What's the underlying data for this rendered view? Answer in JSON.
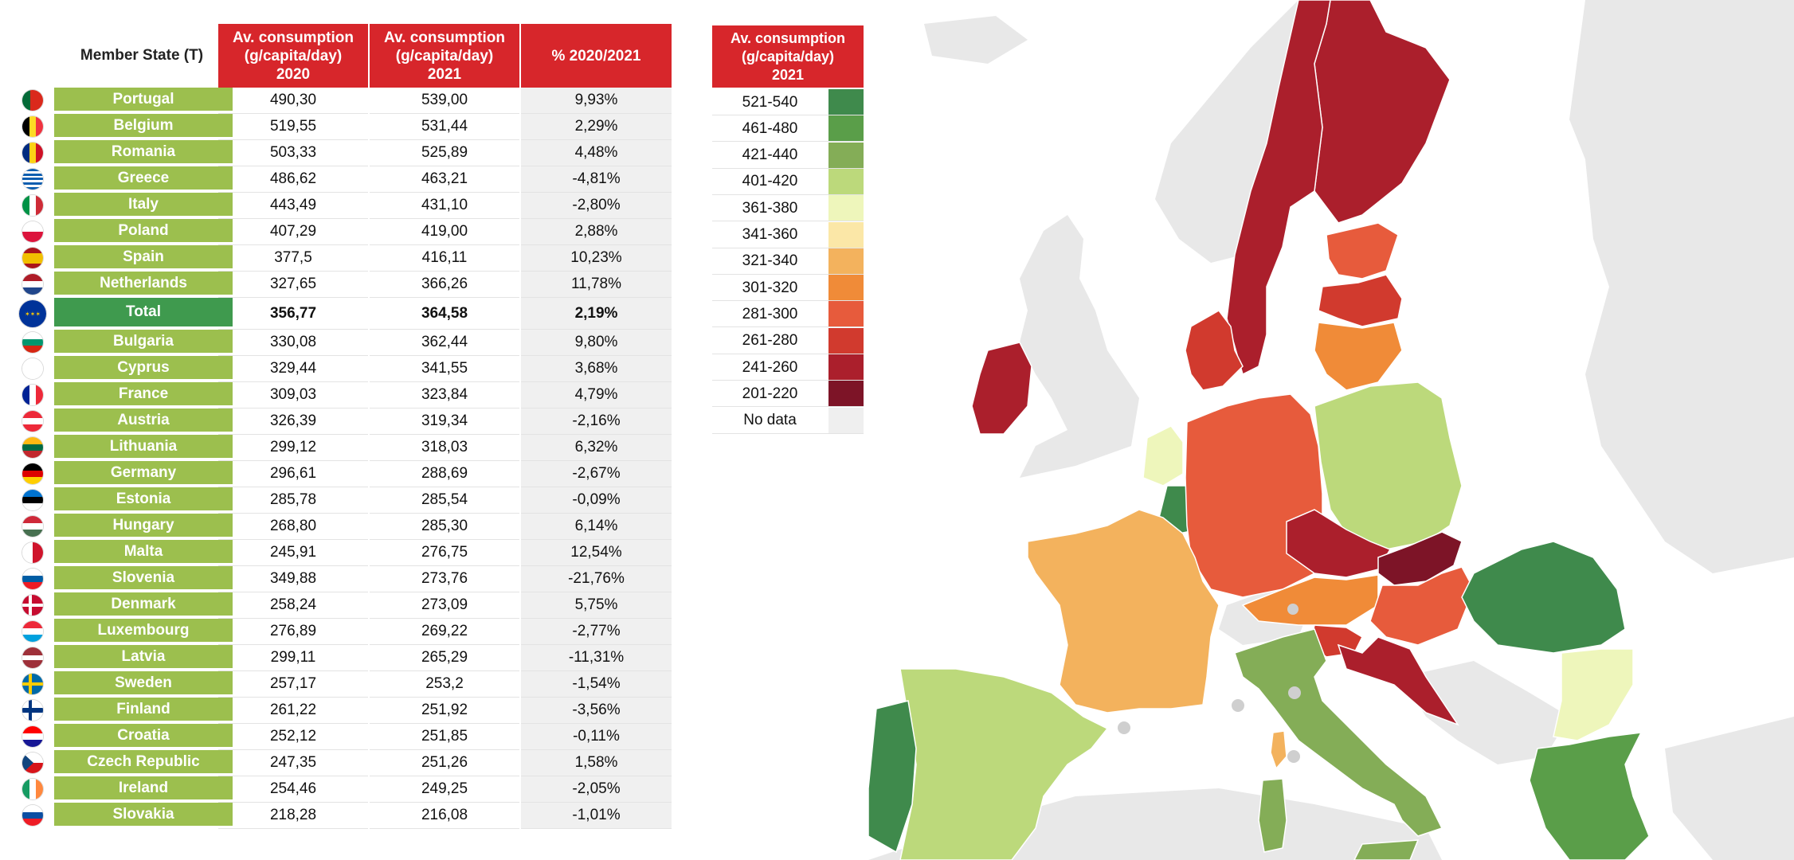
{
  "table": {
    "headers": {
      "member_state": "Member State (T)",
      "col2020": "Av. consumption\n(g/capita/day)\n2020",
      "col2021": "Av. consumption\n(g/capita/day)\n2021",
      "pct": "% 2020/2021"
    },
    "rows": [
      {
        "country": "Portugal",
        "v2020": "490,30",
        "v2021": "539,00",
        "pct": "9,93%",
        "flag": "portugal-flag-icon"
      },
      {
        "country": "Belgium",
        "v2020": "519,55",
        "v2021": "531,44",
        "pct": "2,29%",
        "flag": "belgium-flag-icon"
      },
      {
        "country": "Romania",
        "v2020": "503,33",
        "v2021": "525,89",
        "pct": "4,48%",
        "flag": "romania-flag-icon"
      },
      {
        "country": "Greece",
        "v2020": "486,62",
        "v2021": "463,21",
        "pct": "-4,81%",
        "flag": "greece-flag-icon"
      },
      {
        "country": "Italy",
        "v2020": "443,49",
        "v2021": "431,10",
        "pct": "-2,80%",
        "flag": "italy-flag-icon"
      },
      {
        "country": "Poland",
        "v2020": "407,29",
        "v2021": "419,00",
        "pct": "2,88%",
        "flag": "poland-flag-icon"
      },
      {
        "country": "Spain",
        "v2020": "377,5",
        "v2021": "416,11",
        "pct": "10,23%",
        "flag": "spain-flag-icon"
      },
      {
        "country": "Netherlands",
        "v2020": "327,65",
        "v2021": "366,26",
        "pct": "11,78%",
        "flag": "netherlands-flag-icon"
      },
      {
        "country": "Total",
        "v2020": "356,77",
        "v2021": "364,58",
        "pct": "2,19%",
        "flag": "eu-flag-icon",
        "total": true
      },
      {
        "country": "Bulgaria",
        "v2020": "330,08",
        "v2021": "362,44",
        "pct": "9,80%",
        "flag": "bulgaria-flag-icon"
      },
      {
        "country": "Cyprus",
        "v2020": "329,44",
        "v2021": "341,55",
        "pct": "3,68%",
        "flag": "cyprus-flag-icon"
      },
      {
        "country": "France",
        "v2020": "309,03",
        "v2021": "323,84",
        "pct": "4,79%",
        "flag": "france-flag-icon"
      },
      {
        "country": "Austria",
        "v2020": "326,39",
        "v2021": "319,34",
        "pct": "-2,16%",
        "flag": "austria-flag-icon"
      },
      {
        "country": "Lithuania",
        "v2020": "299,12",
        "v2021": "318,03",
        "pct": "6,32%",
        "flag": "lithuania-flag-icon"
      },
      {
        "country": "Germany",
        "v2020": "296,61",
        "v2021": "288,69",
        "pct": "-2,67%",
        "flag": "germany-flag-icon"
      },
      {
        "country": "Estonia",
        "v2020": "285,78",
        "v2021": "285,54",
        "pct": "-0,09%",
        "flag": "estonia-flag-icon"
      },
      {
        "country": "Hungary",
        "v2020": "268,80",
        "v2021": "285,30",
        "pct": "6,14%",
        "flag": "hungary-flag-icon"
      },
      {
        "country": "Malta",
        "v2020": "245,91",
        "v2021": "276,75",
        "pct": "12,54%",
        "flag": "malta-flag-icon"
      },
      {
        "country": "Slovenia",
        "v2020": "349,88",
        "v2021": "273,76",
        "pct": "-21,76%",
        "flag": "slovenia-flag-icon"
      },
      {
        "country": "Denmark",
        "v2020": "258,24",
        "v2021": "273,09",
        "pct": "5,75%",
        "flag": "denmark-flag-icon"
      },
      {
        "country": "Luxembourg",
        "v2020": "276,89",
        "v2021": "269,22",
        "pct": "-2,77%",
        "flag": "luxembourg-flag-icon"
      },
      {
        "country": "Latvia",
        "v2020": "299,11",
        "v2021": "265,29",
        "pct": "-11,31%",
        "flag": "latvia-flag-icon"
      },
      {
        "country": "Sweden",
        "v2020": "257,17",
        "v2021": "253,2",
        "pct": "-1,54%",
        "flag": "sweden-flag-icon"
      },
      {
        "country": "Finland",
        "v2020": "261,22",
        "v2021": "251,92",
        "pct": "-3,56%",
        "flag": "finland-flag-icon"
      },
      {
        "country": "Croatia",
        "v2020": "252,12",
        "v2021": "251,85",
        "pct": "-0,11%",
        "flag": "croatia-flag-icon"
      },
      {
        "country": "Czech Republic",
        "v2020": "247,35",
        "v2021": "251,26",
        "pct": "1,58%",
        "flag": "czech-flag-icon"
      },
      {
        "country": "Ireland",
        "v2020": "254,46",
        "v2021": "249,25",
        "pct": "-2,05%",
        "flag": "ireland-flag-icon"
      },
      {
        "country": "Slovakia",
        "v2020": "218,28",
        "v2021": "216,08",
        "pct": "-1,01%",
        "flag": "slovakia-flag-icon"
      }
    ]
  },
  "legend": {
    "header": "Av. consumption\n(g/capita/day)\n2021",
    "items": [
      {
        "label": "521-540",
        "color": "#3f8a4c"
      },
      {
        "label": "461-480",
        "color": "#5a9e49"
      },
      {
        "label": "421-440",
        "color": "#84ad57"
      },
      {
        "label": "401-420",
        "color": "#bcd97b"
      },
      {
        "label": "361-380",
        "color": "#eef6bb"
      },
      {
        "label": "341-360",
        "color": "#fbe7a7"
      },
      {
        "label": "321-340",
        "color": "#f3b25d"
      },
      {
        "label": "301-320",
        "color": "#f08b38"
      },
      {
        "label": "281-300",
        "color": "#e75b3c"
      },
      {
        "label": "261-280",
        "color": "#d13a2e"
      },
      {
        "label": "241-260",
        "color": "#ab1f2c"
      },
      {
        "label": "201-220",
        "color": "#7d1427"
      },
      {
        "label": "No data",
        "color": "#efefef"
      }
    ]
  },
  "map": {
    "land_color": "#e8e8e8",
    "countries": [
      {
        "name": "Finland",
        "color": "#ab1f2c"
      },
      {
        "name": "Sweden",
        "color": "#ab1f2c"
      },
      {
        "name": "Estonia",
        "color": "#e75b3c"
      },
      {
        "name": "Latvia",
        "color": "#d13a2e"
      },
      {
        "name": "Lithuania",
        "color": "#f08b38"
      },
      {
        "name": "Denmark",
        "color": "#d13a2e"
      },
      {
        "name": "Ireland",
        "color": "#ab1f2c"
      },
      {
        "name": "Netherlands",
        "color": "#eef6bb"
      },
      {
        "name": "Belgium",
        "color": "#3f8a4c"
      },
      {
        "name": "Luxembourg",
        "color": "#d13a2e"
      },
      {
        "name": "Germany",
        "color": "#e75b3c"
      },
      {
        "name": "Poland",
        "color": "#bcd97b"
      },
      {
        "name": "Czech Republic",
        "color": "#ab1f2c"
      },
      {
        "name": "Slovakia",
        "color": "#7d1427"
      },
      {
        "name": "Austria",
        "color": "#f08b38"
      },
      {
        "name": "Hungary",
        "color": "#e75b3c"
      },
      {
        "name": "Slovenia",
        "color": "#d13a2e"
      },
      {
        "name": "Croatia",
        "color": "#ab1f2c"
      },
      {
        "name": "France",
        "color": "#f3b25d"
      },
      {
        "name": "Italy",
        "color": "#84ad57"
      },
      {
        "name": "Spain",
        "color": "#bcd97b"
      },
      {
        "name": "Portugal",
        "color": "#3f8a4c"
      },
      {
        "name": "Romania",
        "color": "#3f8a4c"
      },
      {
        "name": "Bulgaria",
        "color": "#eef6bb"
      },
      {
        "name": "Greece",
        "color": "#5a9e49"
      },
      {
        "name": "Corsica",
        "color": "#f3b25d"
      },
      {
        "name": "Sardinia",
        "color": "#84ad57"
      },
      {
        "name": "Sicily",
        "color": "#84ad57"
      }
    ]
  }
}
